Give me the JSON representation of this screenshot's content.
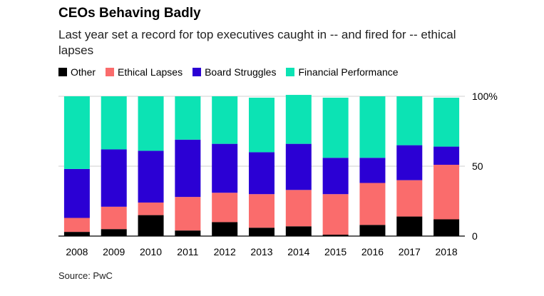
{
  "header": {
    "title": "CEOs Behaving Badly",
    "subtitle": "Last year set a record for top executives caught in -- and fired for -- ethical lapses"
  },
  "source": "Source: PwC",
  "colors": {
    "Other": "#000000",
    "Ethical Lapses": "#fa6c6c",
    "Board Struggles": "#2b00d4",
    "Financial Performance": "#0ce3b4",
    "axis": "#000000",
    "grid": "#cfcfcf"
  },
  "legend": {
    "items": [
      {
        "name": "Other",
        "color": "#000000"
      },
      {
        "name": "Ethical Lapses",
        "color": "#fa6c6c"
      },
      {
        "name": "Board Struggles",
        "color": "#2b00d4"
      },
      {
        "name": "Financial Performance",
        "color": "#0ce3b4"
      }
    ]
  },
  "chart_data": {
    "type": "bar",
    "stacked": true,
    "title": "CEOs Behaving Badly",
    "subtitle": "Last year set a record for top executives caught in -- and fired for -- ethical lapses",
    "categories": [
      "2008",
      "2009",
      "2010",
      "2011",
      "2012",
      "2013",
      "2014",
      "2015",
      "2016",
      "2017",
      "2018"
    ],
    "series": [
      {
        "name": "Other",
        "values": [
          3,
          5,
          15,
          4,
          10,
          6,
          7,
          1,
          8,
          14,
          12
        ]
      },
      {
        "name": "Ethical Lapses",
        "values": [
          10,
          16,
          9,
          24,
          21,
          24,
          26,
          29,
          30,
          26,
          39
        ]
      },
      {
        "name": "Board Struggles",
        "values": [
          35,
          41,
          37,
          41,
          35,
          30,
          33,
          26,
          18,
          25,
          13
        ]
      },
      {
        "name": "Financial Performance",
        "values": [
          52,
          38,
          39,
          31,
          34,
          39,
          35,
          43,
          44,
          35,
          35
        ]
      }
    ],
    "yticks": [
      0,
      50,
      100
    ],
    "ytick_labels": [
      "0",
      "50",
      "100%"
    ],
    "ylim": [
      0,
      100
    ],
    "xlabel": "",
    "ylabel": "",
    "legend_position": "top-left"
  }
}
